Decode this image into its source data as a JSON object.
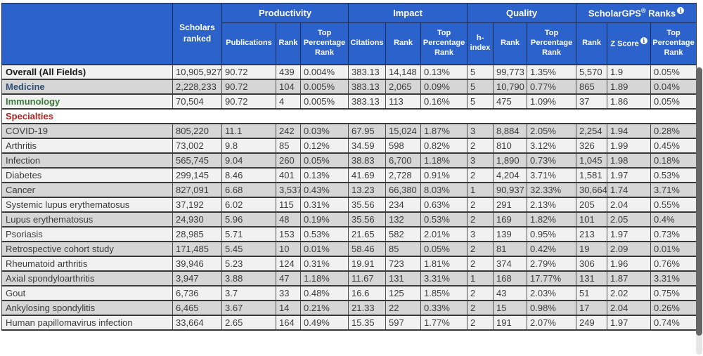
{
  "table": {
    "corner_label": "",
    "scholars_ranked_label": "Scholars ranked",
    "groups": [
      {
        "label": "Productivity",
        "cols": [
          "Publications",
          "Rank",
          "Top Percentage Rank"
        ]
      },
      {
        "label": "Impact",
        "cols": [
          "Citations",
          "Rank",
          "Top Percentage Rank"
        ]
      },
      {
        "label": "Quality",
        "cols": [
          "h-index",
          "Rank",
          "Top Percentage Rank"
        ]
      },
      {
        "label": "ScholarGPS® Ranks",
        "brand": "ScholarGPS",
        "reg_mark": "®",
        "suffix": " Ranks",
        "info_icon": "i",
        "cols": [
          "Rank",
          "Z Score",
          "Top Percentage Rank"
        ]
      }
    ],
    "rows": [
      {
        "name": "Overall (All Fields)",
        "type": "overall",
        "shade": "light",
        "values": [
          "10,905,927",
          "90.72",
          "439",
          "0.004%",
          "383.13",
          "14,148",
          "0.13%",
          "5",
          "99,773",
          "1.35%",
          "5,570",
          "1.9",
          "0.05%"
        ]
      },
      {
        "name": "Medicine",
        "type": "field",
        "shade": "dark",
        "values": [
          "2,228,233",
          "90.72",
          "104",
          "0.005%",
          "383.13",
          "2,065",
          "0.09%",
          "5",
          "10,790",
          "0.77%",
          "865",
          "1.89",
          "0.04%"
        ]
      },
      {
        "name": "Immunology",
        "type": "discipline",
        "shade": "light",
        "values": [
          "70,504",
          "90.72",
          "4",
          "0.005%",
          "383.13",
          "113",
          "0.16%",
          "5",
          "475",
          "1.09%",
          "37",
          "1.86",
          "0.05%"
        ]
      },
      {
        "name": "Specialties",
        "type": "section",
        "shade": "white",
        "values": []
      },
      {
        "name": "COVID-19",
        "type": "specialty",
        "shade": "dark",
        "values": [
          "805,220",
          "11.1",
          "242",
          "0.03%",
          "67.95",
          "15,024",
          "1.87%",
          "3",
          "8,884",
          "2.05%",
          "2,254",
          "1.94",
          "0.28%"
        ]
      },
      {
        "name": "Arthritis",
        "type": "specialty",
        "shade": "light",
        "values": [
          "73,002",
          "9.8",
          "85",
          "0.12%",
          "34.59",
          "598",
          "0.82%",
          "2",
          "810",
          "3.12%",
          "326",
          "1.99",
          "0.45%"
        ]
      },
      {
        "name": "Infection",
        "type": "specialty",
        "shade": "dark",
        "values": [
          "565,745",
          "9.04",
          "260",
          "0.05%",
          "38.83",
          "6,700",
          "1.18%",
          "3",
          "1,890",
          "0.73%",
          "1,045",
          "1.98",
          "0.18%"
        ]
      },
      {
        "name": "Diabetes",
        "type": "specialty",
        "shade": "light",
        "values": [
          "299,145",
          "8.46",
          "401",
          "0.13%",
          "41.69",
          "2,728",
          "0.91%",
          "2",
          "4,204",
          "3.71%",
          "1,581",
          "1.97",
          "0.53%"
        ]
      },
      {
        "name": "Cancer",
        "type": "specialty",
        "shade": "dark",
        "values": [
          "827,091",
          "6.68",
          "3,537",
          "0.43%",
          "13.23",
          "66,380",
          "8.03%",
          "1",
          "90,937",
          "32.33%",
          "30,664",
          "1.74",
          "3.71%"
        ]
      },
      {
        "name": "Systemic lupus erythematosus",
        "type": "specialty",
        "shade": "light",
        "values": [
          "37,192",
          "6.02",
          "115",
          "0.31%",
          "35.56",
          "234",
          "0.63%",
          "2",
          "291",
          "2.13%",
          "205",
          "2.04",
          "0.55%"
        ]
      },
      {
        "name": "Lupus erythematosus",
        "type": "specialty",
        "shade": "dark",
        "values": [
          "24,930",
          "5.96",
          "48",
          "0.19%",
          "35.56",
          "132",
          "0.53%",
          "2",
          "169",
          "1.82%",
          "101",
          "2.05",
          "0.4%"
        ]
      },
      {
        "name": "Psoriasis",
        "type": "specialty",
        "shade": "light",
        "values": [
          "28,985",
          "5.71",
          "153",
          "0.53%",
          "21.65",
          "582",
          "2.01%",
          "3",
          "139",
          "0.95%",
          "213",
          "1.97",
          "0.73%"
        ]
      },
      {
        "name": "Retrospective cohort study",
        "type": "specialty",
        "shade": "dark",
        "values": [
          "171,485",
          "5.45",
          "10",
          "0.01%",
          "58.46",
          "85",
          "0.05%",
          "2",
          "81",
          "0.42%",
          "19",
          "2.09",
          "0.01%"
        ]
      },
      {
        "name": "Rheumatoid arthritis",
        "type": "specialty",
        "shade": "light",
        "values": [
          "39,946",
          "5.23",
          "124",
          "0.31%",
          "19.91",
          "723",
          "1.81%",
          "2",
          "374",
          "2.79%",
          "306",
          "1.96",
          "0.76%"
        ]
      },
      {
        "name": "Axial spondyloarthritis",
        "type": "specialty",
        "shade": "dark",
        "values": [
          "3,947",
          "3.88",
          "47",
          "1.18%",
          "11.67",
          "131",
          "3.31%",
          "1",
          "168",
          "17.77%",
          "131",
          "1.87",
          "3.31%"
        ]
      },
      {
        "name": "Gout",
        "type": "specialty",
        "shade": "light",
        "values": [
          "6,736",
          "3.7",
          "33",
          "0.48%",
          "16.6",
          "125",
          "1.85%",
          "2",
          "43",
          "2.03%",
          "51",
          "2.02",
          "0.75%"
        ]
      },
      {
        "name": "Ankylosing spondylitis",
        "type": "specialty",
        "shade": "dark",
        "values": [
          "6,465",
          "3.67",
          "14",
          "0.21%",
          "21.33",
          "22",
          "0.33%",
          "2",
          "15",
          "0.98%",
          "17",
          "2.04",
          "0.26%"
        ]
      },
      {
        "name": "Human papillomavirus infection",
        "type": "specialty",
        "shade": "light",
        "values": [
          "33,664",
          "2.65",
          "164",
          "0.49%",
          "15.35",
          "597",
          "1.77%",
          "2",
          "191",
          "2.07%",
          "249",
          "1.97",
          "0.74%"
        ]
      }
    ]
  },
  "colors": {
    "header_bg": "#2c62cb",
    "header_text": "#ffffff",
    "row_dark": "#d6d6d6",
    "row_light": "#f1f1f1",
    "name_overall": "#1a1a1a",
    "name_field": "#2f4f74",
    "name_discipline": "#3a7a3a",
    "name_section": "#b22222"
  }
}
